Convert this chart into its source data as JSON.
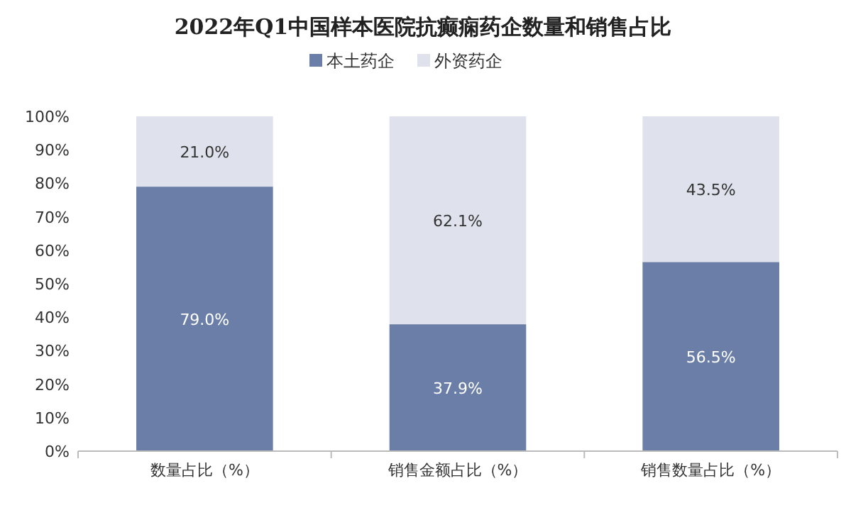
{
  "chart_data": {
    "type": "bar",
    "stacked": true,
    "title": "2022年Q1中国样本医院抗癫痫药企数量和销售占比",
    "categories": [
      "数量占比（%）",
      "销售金额占比（%）",
      "销售数量占比（%）"
    ],
    "series": [
      {
        "name": "本土药企",
        "color": "#6a7ea8",
        "values": [
          79.0,
          37.9,
          56.5
        ],
        "value_labels": [
          "79.0%",
          "37.9%",
          "56.5%"
        ]
      },
      {
        "name": "外资药企",
        "color": "#dfe2ec",
        "values": [
          21.0,
          62.1,
          43.5
        ],
        "value_labels": [
          "21.0%",
          "62.1%",
          "43.5%"
        ]
      }
    ],
    "ylim": [
      0,
      100
    ],
    "yticks": [
      {
        "value": 0,
        "label": "0%"
      },
      {
        "value": 10,
        "label": "10%"
      },
      {
        "value": 20,
        "label": "20%"
      },
      {
        "value": 30,
        "label": "30%"
      },
      {
        "value": 40,
        "label": "40%"
      },
      {
        "value": 50,
        "label": "50%"
      },
      {
        "value": 60,
        "label": "60%"
      },
      {
        "value": 70,
        "label": "70%"
      },
      {
        "value": 80,
        "label": "80%"
      },
      {
        "value": 90,
        "label": "90%"
      },
      {
        "value": 100,
        "label": "100%"
      }
    ],
    "legend": "top"
  }
}
